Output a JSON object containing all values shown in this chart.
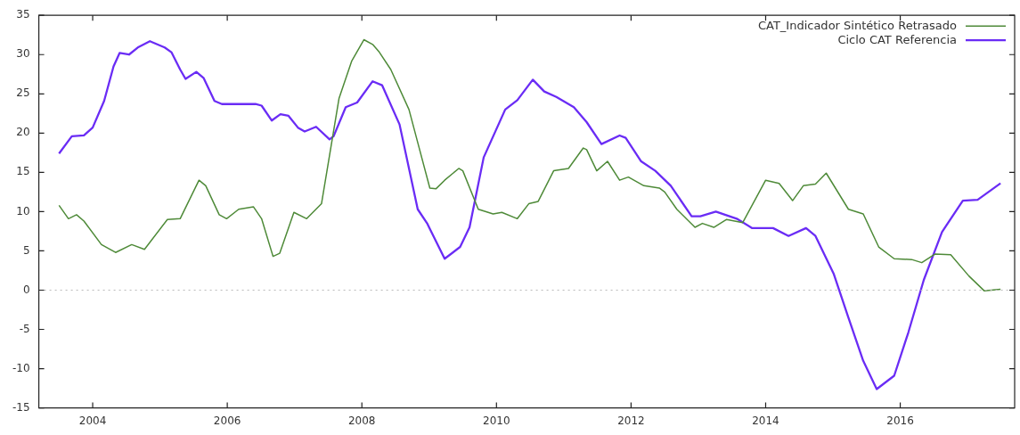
{
  "chart_data": {
    "type": "line",
    "xlim": [
      2003.2,
      2017.7
    ],
    "xticks": [
      2004,
      2006,
      2008,
      2010,
      2012,
      2014,
      2016
    ],
    "ylim": [
      -15,
      35
    ],
    "yticks": [
      -15,
      -10,
      -5,
      0,
      5,
      10,
      15,
      20,
      25,
      30,
      35
    ],
    "grid": false,
    "legend": "top right",
    "marker": "none",
    "line_style": "solid",
    "ref_lines": [
      {
        "axis": "y",
        "value": 0,
        "color": "#bbbbbb",
        "line_style": "dotted"
      }
    ],
    "series": [
      {
        "name": "CAT_Indicador Sintético Retrasado",
        "color": "#4e8a38",
        "x": [
          2003.5,
          2003.64,
          2003.76,
          2003.87,
          2004.13,
          2004.34,
          2004.58,
          2004.77,
          2005.11,
          2005.3,
          2005.58,
          2005.68,
          2005.88,
          2005.99,
          2006.17,
          2006.39,
          2006.51,
          2006.68,
          2006.78,
          2006.99,
          2007.18,
          2007.4,
          2007.53,
          2007.66,
          2007.85,
          2008.03,
          2008.16,
          2008.26,
          2008.43,
          2008.7,
          2008.83,
          2009.01,
          2009.1,
          2009.23,
          2009.44,
          2009.5,
          2009.73,
          2009.95,
          2010.08,
          2010.31,
          2010.48,
          2010.62,
          2010.85,
          2011.07,
          2011.29,
          2011.34,
          2011.49,
          2011.65,
          2011.83,
          2011.96,
          2012.19,
          2012.42,
          2012.5,
          2012.68,
          2012.95,
          2013.06,
          2013.23,
          2013.42,
          2013.66,
          2014.0,
          2014.2,
          2014.4,
          2014.56,
          2014.74,
          2014.9,
          2015.23,
          2015.45,
          2015.68,
          2015.91,
          2016.17,
          2016.32,
          2016.52,
          2016.75,
          2017.02,
          2017.25,
          2017.49
        ],
        "values": [
          10.8,
          9.1,
          9.6,
          8.8,
          5.8,
          4.8,
          5.8,
          5.2,
          9.0,
          9.1,
          14.0,
          13.3,
          9.6,
          9.1,
          10.3,
          10.6,
          9.1,
          4.3,
          4.7,
          9.9,
          9.1,
          11.0,
          17.7,
          24.4,
          29.2,
          31.9,
          31.3,
          30.3,
          28.1,
          23.0,
          18.8,
          13.0,
          12.9,
          14.0,
          15.5,
          15.2,
          10.3,
          9.7,
          9.9,
          9.1,
          11.0,
          11.3,
          15.2,
          15.5,
          18.1,
          17.9,
          15.2,
          16.4,
          14.0,
          14.4,
          13.3,
          13.0,
          12.5,
          10.3,
          8.0,
          8.5,
          8.0,
          9.0,
          8.6,
          14.0,
          13.6,
          11.4,
          13.3,
          13.5,
          14.9,
          10.3,
          9.7,
          5.5,
          4.0,
          3.9,
          3.5,
          4.6,
          4.5,
          1.8,
          -0.1,
          0.1
        ]
      },
      {
        "name": "Ciclo CAT Referencia",
        "color": "#6a2cf5",
        "x": [
          2003.5,
          2003.69,
          2003.87,
          2004.0,
          2004.17,
          2004.31,
          2004.4,
          2004.54,
          2004.67,
          2004.85,
          2005.07,
          2005.17,
          2005.3,
          2005.38,
          2005.54,
          2005.65,
          2005.81,
          2005.92,
          2006.42,
          2006.51,
          2006.66,
          2006.79,
          2006.91,
          2007.05,
          2007.15,
          2007.32,
          2007.52,
          2007.58,
          2007.76,
          2007.93,
          2008.16,
          2008.3,
          2008.56,
          2008.83,
          2008.97,
          2009.23,
          2009.46,
          2009.6,
          2009.81,
          2010.13,
          2010.31,
          2010.54,
          2010.71,
          2010.89,
          2011.15,
          2011.34,
          2011.56,
          2011.83,
          2011.92,
          2012.15,
          2012.36,
          2012.59,
          2012.9,
          2013.03,
          2013.26,
          2013.57,
          2013.8,
          2014.11,
          2014.34,
          2014.6,
          2014.74,
          2015.01,
          2015.23,
          2015.45,
          2015.65,
          2015.91,
          2016.12,
          2016.35,
          2016.62,
          2016.93,
          2017.15,
          2017.49
        ],
        "values": [
          17.4,
          19.6,
          19.7,
          20.7,
          24.1,
          28.5,
          30.2,
          30.0,
          30.9,
          31.7,
          30.9,
          30.3,
          28.1,
          26.9,
          27.8,
          27.0,
          24.1,
          23.7,
          23.7,
          23.5,
          21.6,
          22.4,
          22.2,
          20.7,
          20.2,
          20.8,
          19.2,
          19.6,
          23.3,
          23.9,
          26.6,
          26.1,
          21.1,
          10.3,
          8.5,
          4.0,
          5.5,
          8.0,
          16.9,
          23.0,
          24.2,
          26.8,
          25.3,
          24.6,
          23.3,
          21.4,
          18.6,
          19.7,
          19.4,
          16.4,
          15.2,
          13.3,
          9.4,
          9.4,
          10.0,
          9.1,
          7.9,
          7.9,
          6.9,
          7.9,
          6.9,
          2.1,
          -3.5,
          -9.0,
          -12.6,
          -10.9,
          -5.4,
          1.3,
          7.4,
          11.4,
          11.5,
          13.6
        ]
      }
    ]
  }
}
